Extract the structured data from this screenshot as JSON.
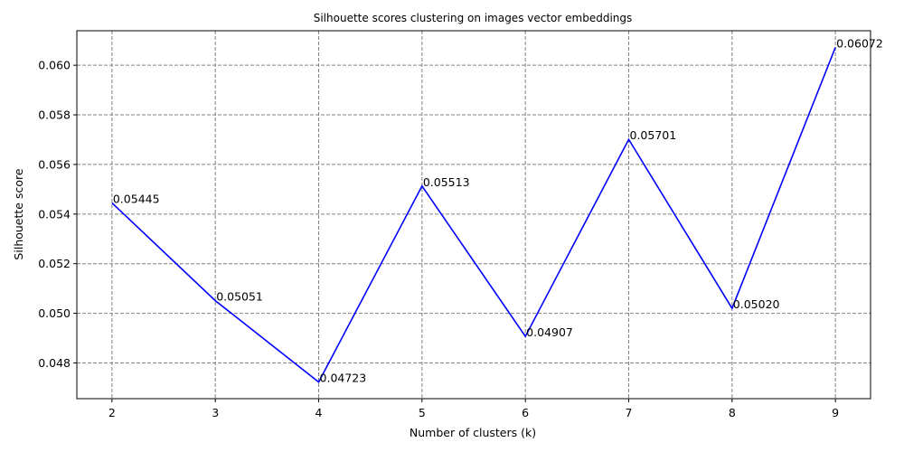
{
  "chart_data": {
    "type": "line",
    "title": "Silhouette scores clustering on images vector embeddings",
    "xlabel": "Number of clusters (k)",
    "ylabel": "Silhouette score",
    "x": [
      2,
      3,
      4,
      5,
      6,
      7,
      8,
      9
    ],
    "values": [
      0.05445,
      0.05051,
      0.04723,
      0.05513,
      0.04907,
      0.05701,
      0.0502,
      0.06072
    ],
    "data_labels": [
      "0.05445",
      "0.05051",
      "0.04723",
      "0.05513",
      "0.04907",
      "0.05701",
      "0.05020",
      "0.06072"
    ],
    "x_ticks": [
      2,
      3,
      4,
      5,
      6,
      7,
      8,
      9
    ],
    "x_tick_labels": [
      "2",
      "3",
      "4",
      "5",
      "6",
      "7",
      "8",
      "9"
    ],
    "y_ticks": [
      0.048,
      0.05,
      0.052,
      0.054,
      0.056,
      0.058,
      0.06
    ],
    "y_tick_labels": [
      "0.048",
      "0.050",
      "0.052",
      "0.054",
      "0.056",
      "0.058",
      "0.060"
    ],
    "xlim": [
      1.66,
      9.34
    ],
    "ylim": [
      0.04656,
      0.06139
    ],
    "grid": true,
    "line_color": "#0000ff",
    "grid_color": "#808080"
  }
}
